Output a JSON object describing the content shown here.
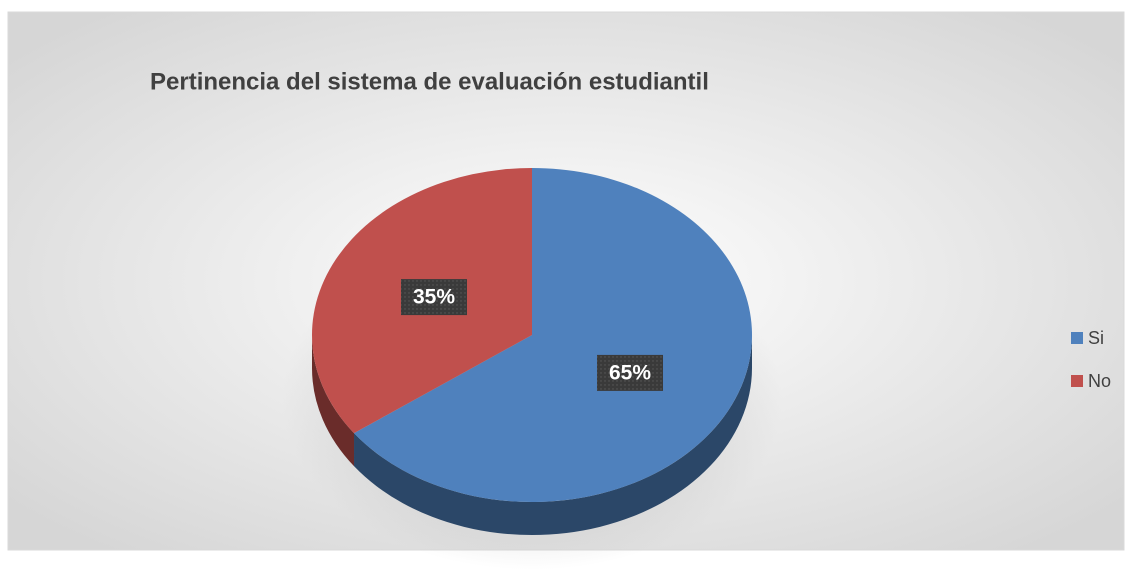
{
  "chart_data": {
    "type": "pie",
    "title": "Pertinencia del sistema de evaluación estudiantil",
    "categories": [
      "Si",
      "No"
    ],
    "values": [
      65,
      35
    ],
    "value_labels": [
      "65%",
      "35%"
    ],
    "colors": [
      "#4f81bd",
      "#c0504d"
    ],
    "legend": "right"
  }
}
